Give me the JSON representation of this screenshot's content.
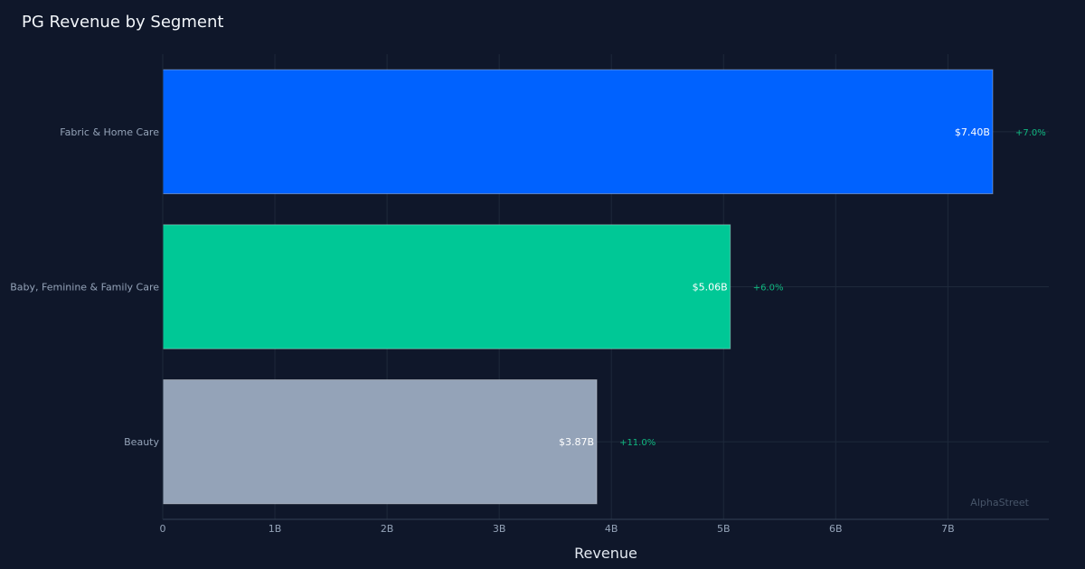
{
  "chart_data": {
    "type": "bar",
    "orientation": "horizontal",
    "title": "PG Revenue by Segment",
    "xlabel": "Revenue",
    "ylabel": "",
    "categories": [
      "Fabric & Home Care",
      "Baby, Feminine & Family Care",
      "Beauty"
    ],
    "values": [
      7.4,
      5.06,
      3.87
    ],
    "value_labels": [
      "$7.40B",
      "$5.06B",
      "$3.87B"
    ],
    "growth_labels": [
      "+7.0%",
      "+6.0%",
      "+11.0%"
    ],
    "value_unit": "B",
    "xlim": [
      0,
      7.9
    ],
    "xticks": [
      0,
      1,
      2,
      3,
      4,
      5,
      6,
      7
    ],
    "xtick_labels": [
      "0",
      "1B",
      "2B",
      "3B",
      "4B",
      "5B",
      "6B",
      "7B"
    ],
    "grid": true,
    "colors": {
      "background": "#0f172a",
      "bars": [
        "#0062ff",
        "#00c896",
        "#94a3b8"
      ],
      "growth": "#10b981",
      "grid": "#1e293b"
    },
    "watermark": "AlphaStreet"
  }
}
